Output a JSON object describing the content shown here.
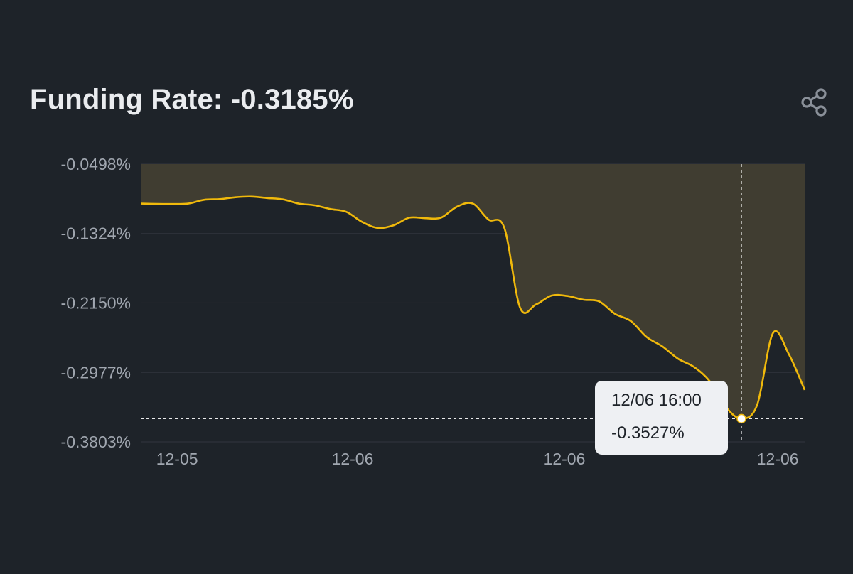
{
  "header": {
    "title": "Funding Rate: -0.3185%",
    "share_icon": "share-icon"
  },
  "tooltip": {
    "time": "12/06 16:00",
    "value": "-0.3527%"
  },
  "colors": {
    "background": "#1e2329",
    "line": "#f0b90b",
    "area_fill": "#403d31",
    "grid": "#2e333b",
    "axis_text": "#a1a7b0",
    "tooltip_bg": "#eef0f3"
  },
  "chart_data": {
    "type": "area",
    "title": "Funding Rate: -0.3185%",
    "xlabel": "",
    "ylabel": "",
    "ylim": [
      -0.3803,
      -0.0498
    ],
    "yticks": [
      "-0.0498%",
      "-0.1324%",
      "-0.2150%",
      "-0.2977%",
      "-0.3803%"
    ],
    "yticks_values": [
      -0.0498,
      -0.1324,
      -0.215,
      -0.2977,
      -0.3803
    ],
    "xticks": [
      "12-05",
      "12-06",
      "12-06",
      "12-06",
      "12-06"
    ],
    "xticks_index": [
      2.3,
      13.4,
      26.8,
      40.3,
      51.9
    ],
    "grid": true,
    "legend": "none",
    "series": [
      {
        "values": [
          -0.0968,
          -0.0972,
          -0.0973,
          -0.0968,
          -0.0923,
          -0.0915,
          -0.0893,
          -0.0885,
          -0.0902,
          -0.0918,
          -0.0968,
          -0.0988,
          -0.1033,
          -0.1066,
          -0.1185,
          -0.1258,
          -0.1226,
          -0.1135,
          -0.1142,
          -0.1135,
          -0.1005,
          -0.0968,
          -0.1158,
          -0.1257,
          -0.2208,
          -0.2168,
          -0.2062,
          -0.2068,
          -0.2112,
          -0.2132,
          -0.228,
          -0.2365,
          -0.2555,
          -0.2668,
          -0.2815,
          -0.2912,
          -0.3083,
          -0.3385,
          -0.3527,
          -0.336,
          -0.2508,
          -0.276,
          -0.3185
        ]
      }
    ],
    "highlight": {
      "index": 38,
      "value": -0.3527,
      "label": "12/06 16:00"
    }
  }
}
